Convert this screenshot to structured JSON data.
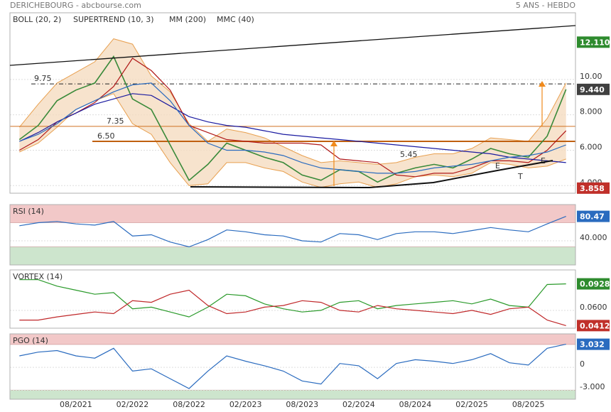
{
  "chart_data": [
    {
      "type": "line",
      "title": "DERICHEBOURG - abcbourse.com",
      "subtitle": "5 ANS - HEBDO",
      "series": [
        {
          "color": "#3a8a3a",
          "values": [
            6.6,
            7.4,
            8.8,
            9.4,
            9.8,
            11.3,
            8.9,
            8.3,
            6.3,
            4.3,
            5.2,
            6.4,
            6.0,
            5.6,
            5.3,
            4.6,
            4.3,
            4.9,
            4.8,
            4.2,
            4.7,
            5.0,
            5.2,
            5.0,
            5.5,
            6.1,
            5.8,
            5.6,
            6.8,
            9.44
          ]
        },
        {
          "name": "SUPERTREND (10, 3)",
          "color": "#b01818",
          "values": [
            6.0,
            6.6,
            7.6,
            8.1,
            8.7,
            9.6,
            11.2,
            10.5,
            9.4,
            7.4,
            7.0,
            6.6,
            6.5,
            6.4,
            6.4,
            6.4,
            6.3,
            5.5,
            5.4,
            5.3,
            4.6,
            4.5,
            4.7,
            4.7,
            5.0,
            5.4,
            5.4,
            5.3,
            6.0,
            7.1
          ]
        },
        {
          "name": "MM (200)",
          "color": "#1a1aa0",
          "values": [
            6.5,
            7.0,
            7.6,
            8.1,
            8.6,
            8.9,
            9.2,
            9.1,
            8.5,
            7.9,
            7.6,
            7.4,
            7.3,
            7.1,
            6.9,
            6.8,
            6.7,
            6.6,
            6.5,
            6.4,
            6.3,
            6.2,
            6.1,
            6.0,
            5.9,
            5.8,
            5.6,
            5.5,
            5.4,
            5.3
          ]
        },
        {
          "name": "MMC (40)",
          "color": "#2a6bbf",
          "values": [
            6.5,
            6.9,
            7.5,
            8.3,
            8.8,
            9.3,
            9.7,
            9.8,
            8.8,
            7.4,
            6.4,
            6.0,
            6.0,
            5.9,
            5.7,
            5.3,
            5.0,
            4.9,
            4.8,
            4.7,
            4.7,
            4.8,
            5.0,
            5.1,
            5.2,
            5.4,
            5.6,
            5.7,
            5.9,
            6.3
          ]
        }
      ],
      "bollinger": {
        "name": "BOLL (20, 2)",
        "color": "#e8a050",
        "upper": [
          7.3,
          8.6,
          9.8,
          10.4,
          11.0,
          12.3,
          12.0,
          10.2,
          9.3,
          7.5,
          6.5,
          7.2,
          7.0,
          6.7,
          6.2,
          5.7,
          5.3,
          5.4,
          5.3,
          5.2,
          5.3,
          5.6,
          5.8,
          5.8,
          6.1,
          6.7,
          6.6,
          6.5,
          7.8,
          9.8
        ],
        "lower": [
          5.9,
          6.4,
          7.3,
          8.3,
          8.8,
          9.2,
          7.5,
          6.9,
          5.3,
          4.0,
          4.1,
          5.3,
          5.3,
          5.0,
          4.8,
          4.2,
          3.9,
          4.1,
          4.2,
          3.9,
          4.1,
          4.5,
          4.6,
          4.5,
          4.7,
          5.3,
          5.2,
          5.0,
          5.1,
          5.5
        ]
      },
      "ylim": [
        3.57,
        13.77
      ],
      "yticks": [
        {
          "value": 4,
          "label": "4.000"
        },
        {
          "value": 6,
          "label": "6.000"
        },
        {
          "value": 8,
          "label": "8.000"
        },
        {
          "value": 10,
          "label": "10.00"
        }
      ],
      "hlines": [
        {
          "value": 9.75,
          "label": "9.75",
          "color": "#222222"
        },
        {
          "value": 7.35,
          "label": "7.35",
          "color": "#d07020"
        },
        {
          "value": 6.5,
          "label": "6.50",
          "color": "#c06010"
        }
      ],
      "annotations": [
        "5.45",
        "E",
        "T",
        "E"
      ],
      "last_labels": [
        {
          "value": 12.11,
          "label": "12.110",
          "color": "#2e8b2e"
        },
        {
          "value": 9.44,
          "label": "9.440",
          "color": "#404040"
        },
        {
          "value": 3.858,
          "color": "#c0302a"
        }
      ]
    },
    {
      "type": "line",
      "title": "RSI (14)",
      "series": [
        {
          "color": "#2a6bbf",
          "values": [
            65,
            70,
            72,
            68,
            66,
            72,
            48,
            50,
            38,
            30,
            42,
            58,
            55,
            50,
            48,
            40,
            38,
            52,
            50,
            42,
            52,
            55,
            55,
            52,
            57,
            62,
            58,
            55,
            68,
            80.47
          ]
        }
      ],
      "ylim": [
        0,
        100
      ],
      "yticks": [
        {
          "value": 40,
          "label": "40.000"
        }
      ],
      "zones": [
        {
          "from": 70,
          "to": 100,
          "color": "#f2c8c8"
        },
        {
          "from": 0,
          "to": 30,
          "color": "#cde5cd"
        }
      ],
      "last_labels": [
        {
          "value": 80.47,
          "color": "#2a6bbf"
        }
      ]
    },
    {
      "type": "line",
      "title": "VORTEX (14)",
      "series": [
        {
          "color": "#2a9a2a",
          "values": [
            0.098,
            0.098,
            0.09,
            0.085,
            0.08,
            0.082,
            0.062,
            0.064,
            0.058,
            0.052,
            0.064,
            0.08,
            0.078,
            0.068,
            0.062,
            0.058,
            0.06,
            0.07,
            0.072,
            0.062,
            0.066,
            0.068,
            0.07,
            0.072,
            0.068,
            0.074,
            0.066,
            0.064,
            0.092,
            0.0928
          ]
        },
        {
          "color": "#c0282a",
          "values": [
            0.048,
            0.048,
            0.052,
            0.055,
            0.058,
            0.056,
            0.072,
            0.07,
            0.08,
            0.085,
            0.066,
            0.056,
            0.058,
            0.064,
            0.066,
            0.072,
            0.07,
            0.06,
            0.058,
            0.066,
            0.062,
            0.06,
            0.058,
            0.056,
            0.06,
            0.055,
            0.062,
            0.064,
            0.048,
            0.0412
          ]
        }
      ],
      "ylim": [
        0.038,
        0.11
      ],
      "yticks": [
        {
          "value": 0.06,
          "label": "0.0600"
        }
      ],
      "last_labels": [
        {
          "value": 0.0928,
          "color": "#2e8b2e"
        },
        {
          "value": 0.0412,
          "color": "#c0302a"
        }
      ]
    },
    {
      "type": "line",
      "title": "PGO (14)",
      "categories": [
        null,
        null,
        null,
        "08/2021",
        null,
        null,
        "02/2022",
        null,
        null,
        "08/2022",
        null,
        null,
        "02/2023",
        null,
        null,
        "08/2023",
        null,
        null,
        "02/2024",
        null,
        null,
        "08/2024",
        null,
        null,
        "02/2025",
        null,
        null,
        "08/2025",
        null,
        null
      ],
      "series": [
        {
          "color": "#2a6bbf",
          "values": [
            1.5,
            2.0,
            2.2,
            1.5,
            1.2,
            2.5,
            -0.5,
            -0.2,
            -1.5,
            -2.8,
            -0.5,
            1.5,
            0.8,
            0.2,
            -0.5,
            -1.8,
            -2.2,
            0.5,
            0.2,
            -1.5,
            0.5,
            1.0,
            0.8,
            0.5,
            1.0,
            1.8,
            0.6,
            0.3,
            2.5,
            3.032
          ]
        }
      ],
      "ylim": [
        -4.2,
        4.4
      ],
      "yticks": [
        0,
        {
          "value": -3,
          "label": "-3.000"
        }
      ],
      "zones": [
        {
          "from": 3,
          "to": 4.4,
          "color": "#f2c8c8"
        },
        {
          "from": -4.2,
          "to": -3,
          "color": "#cde5cd"
        }
      ],
      "last_labels": [
        {
          "value": 3.032,
          "color": "#2a6bbf"
        }
      ]
    }
  ]
}
